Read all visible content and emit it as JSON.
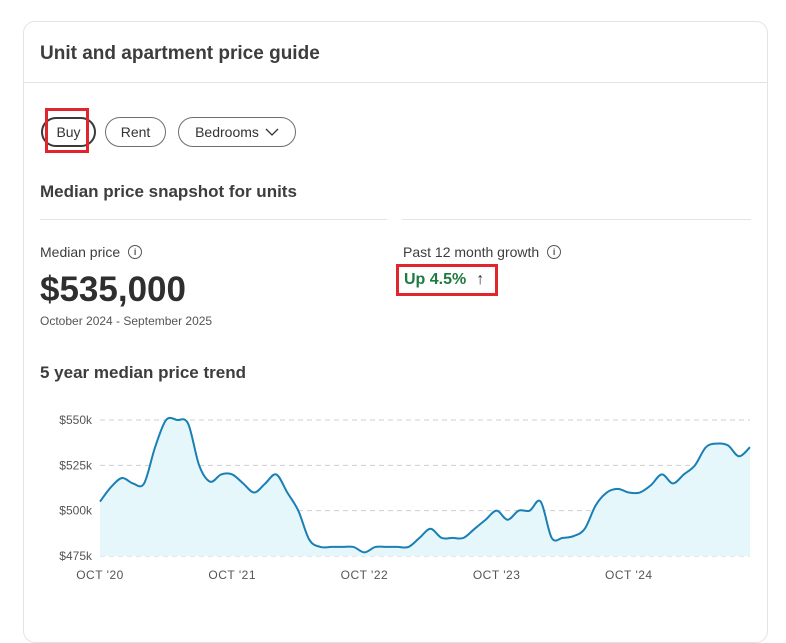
{
  "card": {
    "title": "Unit and apartment price guide"
  },
  "filters": {
    "buy": "Buy",
    "rent": "Rent",
    "bedrooms": "Bedrooms"
  },
  "snapshot": {
    "title": "Median price snapshot for units",
    "median_label": "Median price",
    "median_value": "$535,000",
    "date_range": "October 2024 - September 2025",
    "growth_label": "Past 12 month growth",
    "growth_value": "Up 4.5%"
  },
  "trend": {
    "title": "5 year median price trend"
  },
  "colors": {
    "line": "#1a7fb4",
    "area": "#e6f7fc",
    "growth": "#1e7a3e",
    "highlight": "#e0262c"
  },
  "chart_data": {
    "type": "area",
    "title": "5 year median price trend",
    "ylim": [
      475000,
      550000
    ],
    "y_ticks": [
      {
        "value": 550000,
        "label": "$550k"
      },
      {
        "value": 525000,
        "label": "$525k"
      },
      {
        "value": 500000,
        "label": "$500k"
      },
      {
        "value": 475000,
        "label": "$475k"
      }
    ],
    "x_ticks": [
      {
        "month": 0,
        "label": "OCT '20"
      },
      {
        "month": 12,
        "label": "OCT '21"
      },
      {
        "month": 24,
        "label": "OCT '22"
      },
      {
        "month": 36,
        "label": "OCT '23"
      },
      {
        "month": 48,
        "label": "OCT '24"
      }
    ],
    "xlim": [
      0,
      59
    ],
    "series": [
      {
        "name": "Median price",
        "points": [
          [
            0,
            505000
          ],
          [
            1,
            513000
          ],
          [
            2,
            518000
          ],
          [
            3,
            515000
          ],
          [
            4,
            515000
          ],
          [
            5,
            535000
          ],
          [
            6,
            550000
          ],
          [
            7,
            550000
          ],
          [
            8,
            548000
          ],
          [
            9,
            525000
          ],
          [
            10,
            516000
          ],
          [
            11,
            520000
          ],
          [
            12,
            520000
          ],
          [
            13,
            515000
          ],
          [
            14,
            510000
          ],
          [
            15,
            515000
          ],
          [
            16,
            520000
          ],
          [
            17,
            510000
          ],
          [
            18,
            500000
          ],
          [
            19,
            484000
          ],
          [
            20,
            480000
          ],
          [
            21,
            480000
          ],
          [
            22,
            480000
          ],
          [
            23,
            480000
          ],
          [
            24,
            477000
          ],
          [
            25,
            480000
          ],
          [
            26,
            480000
          ],
          [
            27,
            480000
          ],
          [
            28,
            480000
          ],
          [
            29,
            485000
          ],
          [
            30,
            490000
          ],
          [
            31,
            485000
          ],
          [
            32,
            485000
          ],
          [
            33,
            485000
          ],
          [
            34,
            490000
          ],
          [
            35,
            495000
          ],
          [
            36,
            500000
          ],
          [
            37,
            495000
          ],
          [
            38,
            500000
          ],
          [
            39,
            500000
          ],
          [
            40,
            505000
          ],
          [
            41,
            485000
          ],
          [
            42,
            485000
          ],
          [
            43,
            486000
          ],
          [
            44,
            490000
          ],
          [
            45,
            503000
          ],
          [
            46,
            510000
          ],
          [
            47,
            512000
          ],
          [
            48,
            510000
          ],
          [
            49,
            510000
          ],
          [
            50,
            514000
          ],
          [
            51,
            520000
          ],
          [
            52,
            515000
          ],
          [
            53,
            520000
          ],
          [
            54,
            525000
          ],
          [
            55,
            535000
          ],
          [
            56,
            537000
          ],
          [
            57,
            536000
          ],
          [
            58,
            530000
          ],
          [
            59,
            535000
          ]
        ]
      }
    ]
  }
}
